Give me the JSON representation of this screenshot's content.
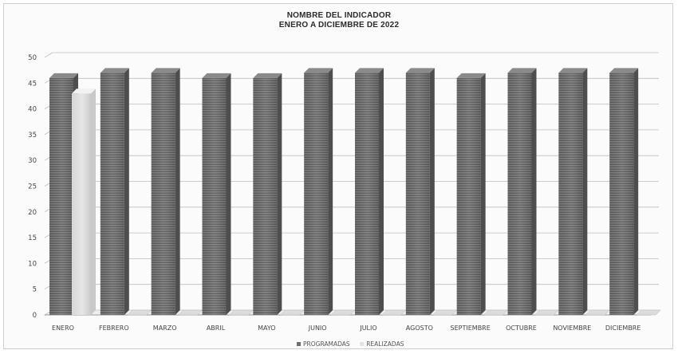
{
  "chart_data": {
    "type": "bar",
    "title": "NOMBRE DEL INDICADOR",
    "subtitle": "ENERO A DICIEMBRE DE 2022",
    "categories": [
      "ENERO",
      "FEBRERO",
      "MARZO",
      "ABRIL",
      "MAYO",
      "JUNIO",
      "JULIO",
      "AGOSTO",
      "SEPTIEMBRE",
      "OCTUBRE",
      "NOVIEMBRE",
      "DICIEMBRE"
    ],
    "series": [
      {
        "name": "PROGRAMADAS",
        "values": [
          46,
          47,
          47,
          46,
          46,
          47,
          47,
          47,
          46,
          47,
          47,
          47
        ],
        "color": "#6e6e6e"
      },
      {
        "name": "REALIZADAS",
        "values": [
          43,
          0,
          0,
          0,
          0,
          0,
          0,
          0,
          0,
          0,
          0,
          0
        ],
        "color": "#e2e2e2"
      }
    ],
    "ylim": [
      0,
      50
    ],
    "yticks": [
      0,
      5,
      10,
      15,
      20,
      25,
      30,
      35,
      40,
      45,
      50
    ],
    "xlabel": "",
    "ylabel": "",
    "grid": true,
    "legend": "bottom",
    "style": "3d-column"
  }
}
